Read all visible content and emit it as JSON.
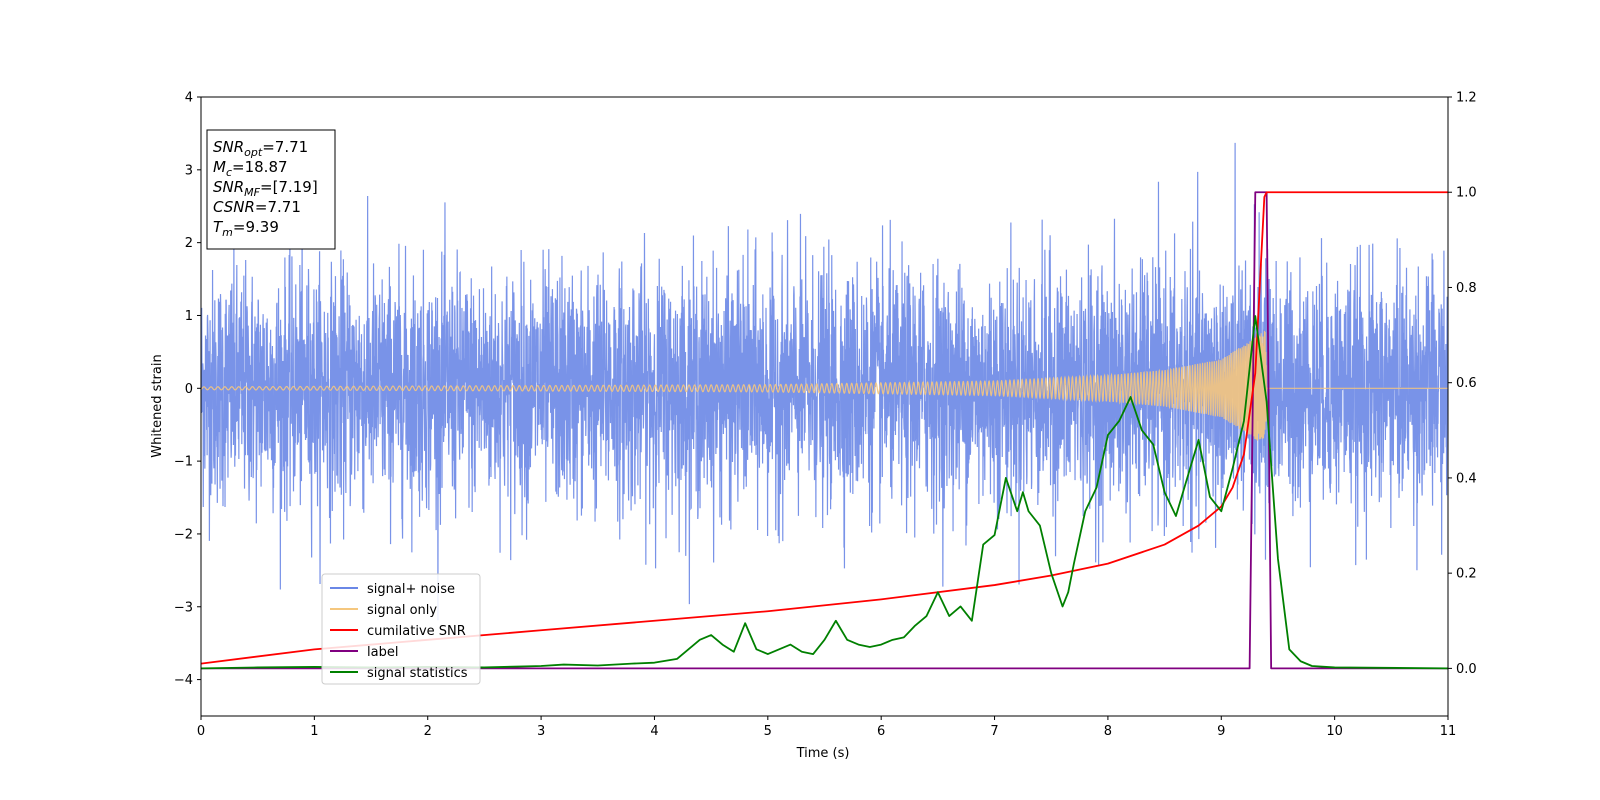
{
  "info_box": {
    "lines": [
      {
        "sym": "SNR",
        "sub": "opt",
        "rest": "=7.71"
      },
      {
        "sym": "M",
        "sub": "c",
        "rest": "=18.87"
      },
      {
        "sym": "SNR",
        "sub": "MF",
        "rest": "=[7.19]"
      },
      {
        "sym": "CSNR",
        "sub": "",
        "rest": "=7.71"
      },
      {
        "sym": "T",
        "sub": "m",
        "rest": "=9.39"
      }
    ]
  },
  "chart_data": {
    "type": "line",
    "xlabel": "Time (s)",
    "ylabel": "Whitened strain",
    "y2label": "",
    "xlim": [
      0,
      11
    ],
    "ylim": [
      -4.5,
      4
    ],
    "y2lim": [
      -0.1,
      1.2
    ],
    "x_ticks": [
      "0",
      "1",
      "2",
      "3",
      "4",
      "5",
      "6",
      "7",
      "8",
      "9",
      "10",
      "11"
    ],
    "y_ticks": [
      "4",
      "3",
      "2",
      "1",
      "0",
      "−1",
      "−2",
      "−3",
      "−4"
    ],
    "y2_ticks": [
      "1.2",
      "1.0",
      "0.8",
      "0.6",
      "0.4",
      "0.2",
      "0.0"
    ],
    "grid": false,
    "legend_position": "lower-left",
    "series": [
      {
        "name": "signal+ noise",
        "axis": "left",
        "color": "#6a87e6",
        "kind": "noise",
        "note_values": "Gaussian-like noise with amplitude about ±2 and peaks near ±3.5 spanning 0–11 s, plus the chirp"
      },
      {
        "name": "signal only",
        "axis": "left",
        "color": "#f5c77e",
        "kind": "chirp",
        "amplitude_at": [
          [
            0,
            0.02
          ],
          [
            5,
            0.05
          ],
          [
            7,
            0.1
          ],
          [
            8,
            0.18
          ],
          [
            8.5,
            0.25
          ],
          [
            9,
            0.4
          ],
          [
            9.3,
            0.7
          ],
          [
            9.39,
            0.8
          ],
          [
            9.4,
            0
          ]
        ]
      },
      {
        "name": "cumilative SNR",
        "axis": "right",
        "color": "#ff0000",
        "x": [
          0,
          1,
          2,
          3,
          4,
          5,
          6,
          7,
          7.5,
          8,
          8.5,
          8.8,
          9,
          9.1,
          9.2,
          9.3,
          9.38,
          9.4,
          11
        ],
        "y": [
          0.01,
          0.04,
          0.06,
          0.08,
          0.1,
          0.12,
          0.145,
          0.175,
          0.195,
          0.22,
          0.26,
          0.3,
          0.34,
          0.38,
          0.45,
          0.62,
          0.99,
          1.0,
          1.0
        ]
      },
      {
        "name": "label",
        "axis": "right",
        "color": "#800080",
        "x": [
          0,
          9.25,
          9.3,
          9.4,
          9.44,
          11
        ],
        "y": [
          0,
          0,
          1.0,
          1.0,
          0,
          0
        ]
      },
      {
        "name": "signal statistics",
        "axis": "right",
        "color": "#008000",
        "x": [
          0,
          0.5,
          1,
          1.5,
          2,
          2.5,
          3,
          3.2,
          3.5,
          3.8,
          4,
          4.2,
          4.3,
          4.4,
          4.5,
          4.6,
          4.7,
          4.8,
          4.9,
          5,
          5.1,
          5.2,
          5.3,
          5.4,
          5.5,
          5.6,
          5.7,
          5.8,
          5.9,
          6,
          6.1,
          6.2,
          6.3,
          6.4,
          6.5,
          6.6,
          6.7,
          6.8,
          6.9,
          7,
          7.1,
          7.2,
          7.25,
          7.3,
          7.4,
          7.5,
          7.6,
          7.65,
          7.7,
          7.8,
          7.9,
          8.0,
          8.1,
          8.2,
          8.3,
          8.4,
          8.5,
          8.6,
          8.7,
          8.8,
          8.9,
          9.0,
          9.1,
          9.2,
          9.3,
          9.4,
          9.5,
          9.6,
          9.7,
          9.8,
          10,
          11
        ],
        "y": [
          0,
          0.002,
          0.003,
          0.002,
          0.003,
          0.002,
          0.005,
          0.008,
          0.006,
          0.01,
          0.012,
          0.02,
          0.04,
          0.06,
          0.07,
          0.05,
          0.035,
          0.095,
          0.04,
          0.03,
          0.04,
          0.05,
          0.035,
          0.03,
          0.06,
          0.1,
          0.06,
          0.05,
          0.045,
          0.05,
          0.06,
          0.065,
          0.09,
          0.11,
          0.16,
          0.11,
          0.13,
          0.1,
          0.26,
          0.28,
          0.4,
          0.33,
          0.37,
          0.33,
          0.3,
          0.2,
          0.13,
          0.16,
          0.22,
          0.33,
          0.38,
          0.49,
          0.52,
          0.57,
          0.5,
          0.47,
          0.37,
          0.32,
          0.4,
          0.48,
          0.36,
          0.33,
          0.42,
          0.52,
          0.74,
          0.56,
          0.23,
          0.04,
          0.015,
          0.005,
          0.002,
          0.0
        ]
      }
    ]
  }
}
